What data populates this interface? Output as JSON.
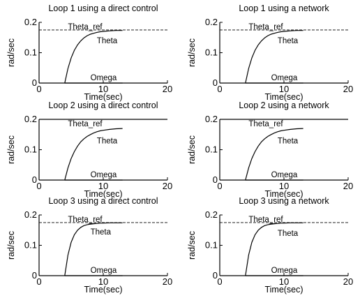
{
  "chart_data": [
    {
      "type": "line",
      "title": "Loop 1 using a direct control",
      "xlabel": "Time(sec)",
      "ylabel": "rad/sec",
      "xlim": [
        0,
        20
      ],
      "ylim": [
        0,
        0.2
      ],
      "xticks": [
        "0",
        "10",
        "20"
      ],
      "yticks": [
        "0",
        "0.1",
        "0.2"
      ],
      "annotations": [
        {
          "text": "Theta_ref",
          "x": 4.5,
          "y": 0.186
        },
        {
          "text": "Theta",
          "x": 9.0,
          "y": 0.14
        },
        {
          "text": "Omega",
          "x": 8.0,
          "y": 0.018
        }
      ],
      "series": [
        {
          "style": "dashed",
          "x": [
            0,
            20
          ],
          "y": [
            0.175,
            0.175
          ]
        },
        {
          "style": "solid",
          "x": [
            4,
            4.5,
            5,
            5.5,
            6,
            6.5,
            7,
            7.5,
            8,
            8.5,
            9,
            9.5,
            10,
            11,
            12,
            13
          ],
          "y": [
            0,
            0.048,
            0.083,
            0.108,
            0.126,
            0.139,
            0.149,
            0.156,
            0.161,
            0.164,
            0.167,
            0.169,
            0.17,
            0.172,
            0.173,
            0.173
          ]
        },
        {
          "style": "solid",
          "x": [
            4,
            13
          ],
          "y": [
            0,
            0
          ]
        }
      ]
    },
    {
      "type": "line",
      "title": "Loop 1 using a network",
      "xlabel": "Time(sec)",
      "ylabel": "rad/sec",
      "xlim": [
        0,
        20
      ],
      "ylim": [
        0,
        0.2
      ],
      "xticks": [
        "0",
        "10",
        "20"
      ],
      "yticks": [
        "0",
        "0.1",
        "0.2"
      ],
      "annotations": [
        {
          "text": "Theta_ref",
          "x": 4.5,
          "y": 0.186
        },
        {
          "text": "Theta",
          "x": 9.0,
          "y": 0.14
        },
        {
          "text": "Omega",
          "x": 8.0,
          "y": 0.018
        }
      ],
      "series": [
        {
          "style": "dashed",
          "x": [
            0,
            20
          ],
          "y": [
            0.175,
            0.175
          ]
        },
        {
          "style": "solid",
          "x": [
            4,
            4.5,
            5,
            5.5,
            6,
            6.5,
            7,
            7.5,
            8,
            8.5,
            9,
            9.5,
            10,
            11,
            12,
            13
          ],
          "y": [
            0,
            0.048,
            0.083,
            0.108,
            0.126,
            0.139,
            0.149,
            0.156,
            0.161,
            0.164,
            0.167,
            0.169,
            0.17,
            0.172,
            0.173,
            0.173
          ]
        },
        {
          "style": "solid",
          "x": [
            4,
            13
          ],
          "y": [
            0,
            0
          ]
        }
      ]
    },
    {
      "type": "line",
      "title": "Loop 2 using a direct control",
      "xlabel": "Time(sec)",
      "ylabel": "rad/sec",
      "xlim": [
        0,
        20
      ],
      "ylim": [
        0,
        0.2
      ],
      "xticks": [
        "0",
        "10",
        "20"
      ],
      "yticks": [
        "0",
        "0.1",
        "0.2"
      ],
      "annotations": [
        {
          "text": "Theta_ref",
          "x": 4.5,
          "y": 0.186
        },
        {
          "text": "Theta",
          "x": 9.0,
          "y": 0.13
        },
        {
          "text": "Omega",
          "x": 8.0,
          "y": 0.018
        }
      ],
      "series": [
        {
          "style": "solid",
          "x": [
            0,
            20
          ],
          "y": [
            0.2,
            0.2
          ]
        },
        {
          "style": "solid",
          "x": [
            4,
            4.5,
            5,
            5.5,
            6,
            6.5,
            7,
            7.5,
            8,
            8.5,
            9,
            9.5,
            10,
            11,
            12,
            13
          ],
          "y": [
            0,
            0.04,
            0.071,
            0.094,
            0.112,
            0.126,
            0.136,
            0.144,
            0.15,
            0.155,
            0.159,
            0.162,
            0.164,
            0.167,
            0.169,
            0.17
          ]
        },
        {
          "style": "solid",
          "x": [
            4,
            13
          ],
          "y": [
            0,
            0
          ]
        }
      ]
    },
    {
      "type": "line",
      "title": "Loop 2 using a network",
      "xlabel": "Time(sec)",
      "ylabel": "rad/sec",
      "xlim": [
        0,
        20
      ],
      "ylim": [
        0,
        0.2
      ],
      "xticks": [
        "0",
        "10",
        "20"
      ],
      "yticks": [
        "0",
        "0.1",
        "0.2"
      ],
      "annotations": [
        {
          "text": "Theta_ref",
          "x": 4.5,
          "y": 0.186
        },
        {
          "text": "Theta",
          "x": 9.0,
          "y": 0.13
        },
        {
          "text": "Omega",
          "x": 8.0,
          "y": 0.018
        }
      ],
      "series": [
        {
          "style": "solid",
          "x": [
            0,
            20
          ],
          "y": [
            0.2,
            0.2
          ]
        },
        {
          "style": "solid",
          "x": [
            4,
            4.5,
            5,
            5.5,
            6,
            6.5,
            7,
            7.5,
            8,
            8.5,
            9,
            9.5,
            10,
            11,
            12,
            13
          ],
          "y": [
            0,
            0.04,
            0.071,
            0.094,
            0.112,
            0.126,
            0.136,
            0.144,
            0.15,
            0.155,
            0.159,
            0.162,
            0.164,
            0.167,
            0.169,
            0.17
          ]
        },
        {
          "style": "solid",
          "x": [
            4,
            13
          ],
          "y": [
            0,
            0
          ]
        }
      ]
    },
    {
      "type": "line",
      "title": "Loop 3 using a direct control",
      "xlabel": "Time(sec)",
      "ylabel": "rad/sec",
      "xlim": [
        0,
        20
      ],
      "ylim": [
        0,
        0.2
      ],
      "xticks": [
        "0",
        "10",
        "20"
      ],
      "yticks": [
        "0",
        "0.1",
        "0.2"
      ],
      "annotations": [
        {
          "text": "Theta_ref",
          "x": 4.5,
          "y": 0.186
        },
        {
          "text": "Theta",
          "x": 8.0,
          "y": 0.145
        },
        {
          "text": "Omega",
          "x": 8.0,
          "y": 0.018
        }
      ],
      "series": [
        {
          "style": "dashed",
          "x": [
            0,
            20
          ],
          "y": [
            0.175,
            0.175
          ]
        },
        {
          "style": "solid",
          "x": [
            4,
            4.5,
            5,
            5.5,
            6,
            6.5,
            7,
            7.5,
            8,
            8.5,
            9,
            9.5,
            10,
            11,
            12,
            13
          ],
          "y": [
            0,
            0.068,
            0.11,
            0.135,
            0.15,
            0.159,
            0.165,
            0.168,
            0.17,
            0.171,
            0.172,
            0.173,
            0.173,
            0.174,
            0.174,
            0.174
          ]
        },
        {
          "style": "solid",
          "x": [
            4,
            13
          ],
          "y": [
            0,
            0
          ]
        }
      ]
    },
    {
      "type": "line",
      "title": "Loop 3 using a network",
      "xlabel": "Time(sec)",
      "ylabel": "rad/sec",
      "xlim": [
        0,
        20
      ],
      "ylim": [
        0,
        0.2
      ],
      "xticks": [
        "0",
        "10",
        "20"
      ],
      "yticks": [
        "0",
        "0.1",
        "0.2"
      ],
      "annotations": [
        {
          "text": "Theta_ref",
          "x": 4.5,
          "y": 0.186
        },
        {
          "text": "Theta",
          "x": 9.0,
          "y": 0.14
        },
        {
          "text": "Omega",
          "x": 8.0,
          "y": 0.018
        }
      ],
      "series": [
        {
          "style": "dashed",
          "x": [
            0,
            20
          ],
          "y": [
            0.175,
            0.175
          ]
        },
        {
          "style": "solid",
          "x": [
            4,
            4.5,
            5,
            5.5,
            6,
            6.5,
            7,
            7.5,
            8,
            8.5,
            9,
            9.5,
            10,
            11,
            12,
            13
          ],
          "y": [
            0,
            0.068,
            0.11,
            0.135,
            0.15,
            0.159,
            0.165,
            0.168,
            0.17,
            0.171,
            0.172,
            0.173,
            0.173,
            0.174,
            0.174,
            0.174
          ]
        },
        {
          "style": "solid",
          "x": [
            4,
            13
          ],
          "y": [
            0,
            0
          ]
        }
      ]
    }
  ]
}
